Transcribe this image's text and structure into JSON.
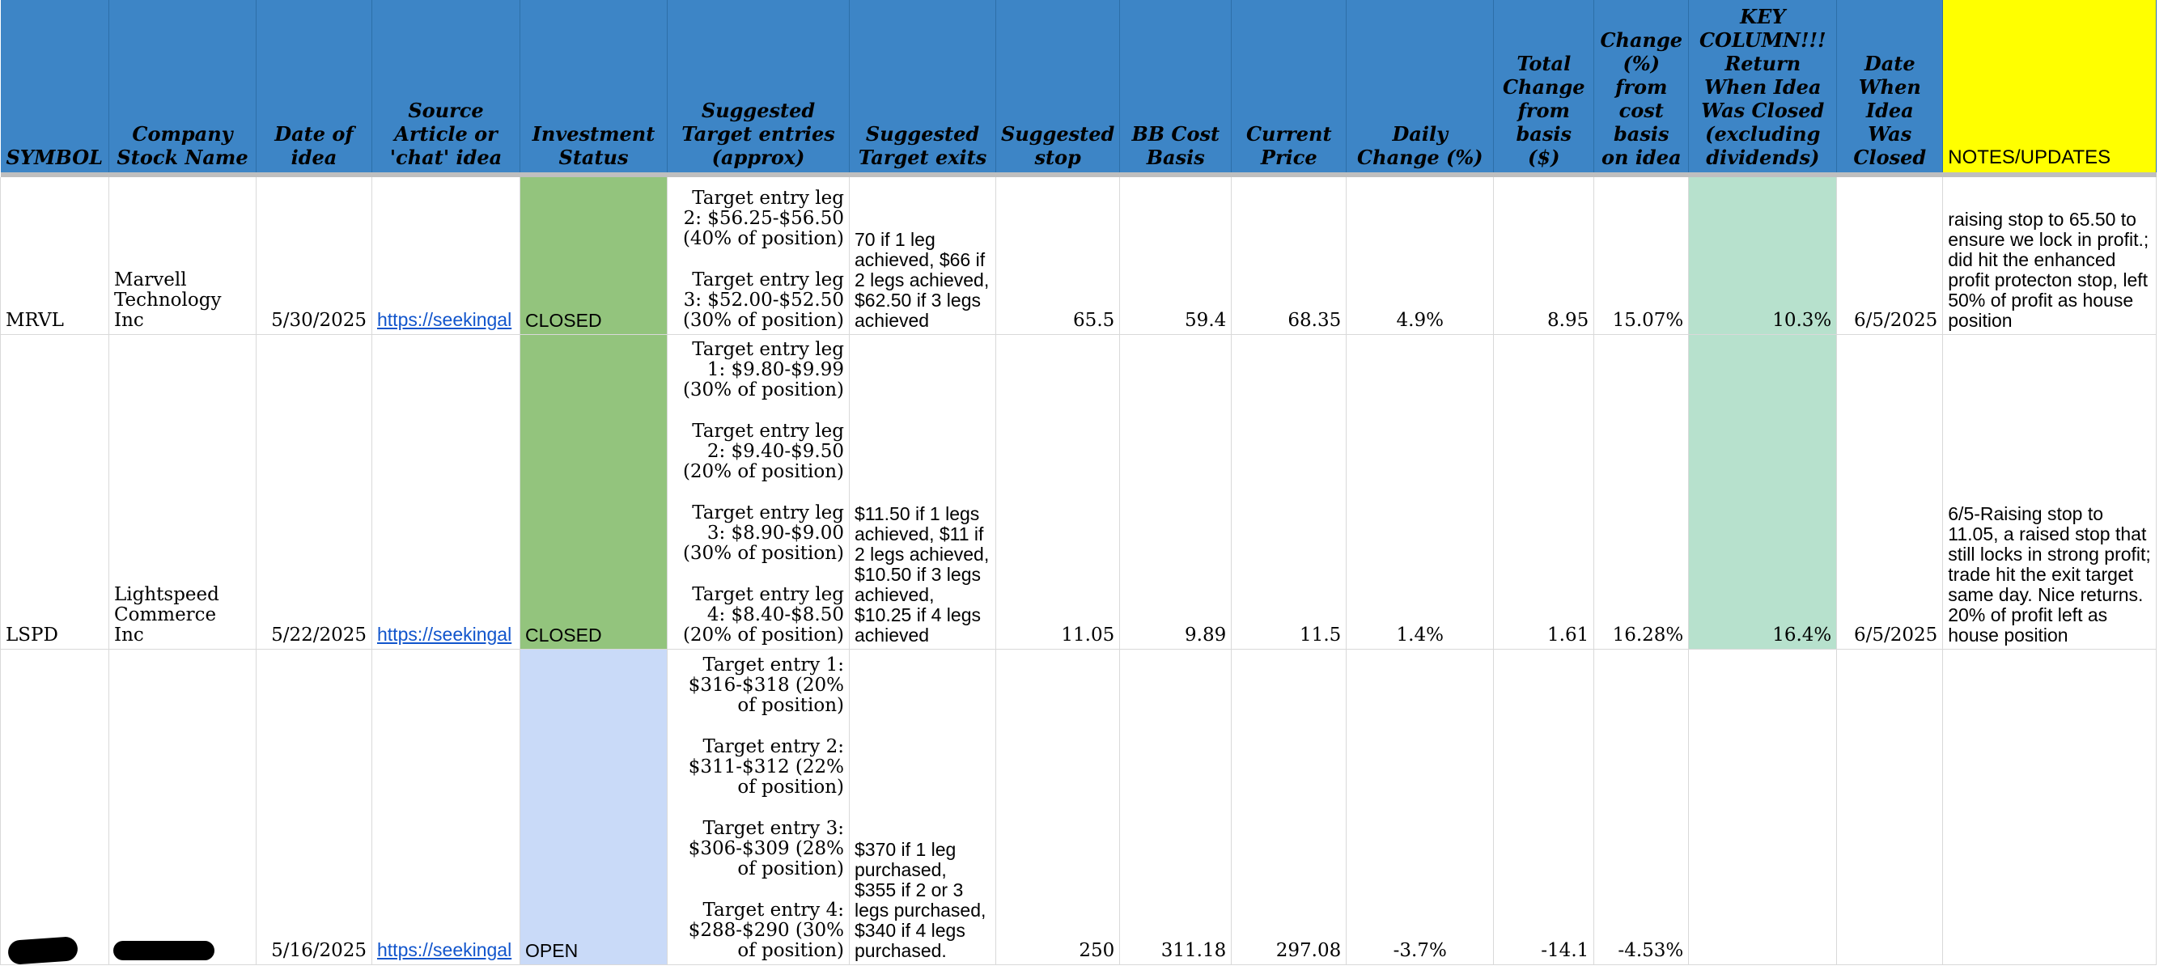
{
  "headers": {
    "symbol": "SYMBOL",
    "company": "Company Stock Name",
    "date_of_idea": "Date of idea",
    "source": "Source Article or 'chat' idea",
    "status": "Investment Status",
    "entries": "Suggested Target entries (approx)",
    "exits": "Suggested Target exits",
    "stop": "Suggested stop",
    "cost_basis": "BB Cost Basis",
    "current_price": "Current Price",
    "daily_change": "Daily Change (%)",
    "total_change": "Total Change from basis ($)",
    "change_pct": "Change (%) from cost basis on idea",
    "key_return": "KEY COLUMN!!! Return When Idea Was Closed (excluding dividends)",
    "date_closed": "Date When Idea Was Closed",
    "notes": "NOTES/UPDATES"
  },
  "rows": [
    {
      "symbol": "MRVL",
      "company": "Marvell Technology Inc",
      "date_of_idea": "5/30/2025",
      "source": "https://seekingalpha.com",
      "source_display": "https://seekingal",
      "status": "CLOSED",
      "entries": [
        "Target entry leg 2: $56.25-$56.50 (40% of position)",
        "Target entry leg 3: $52.00-$52.50 (30% of position)"
      ],
      "exits": "70 if 1 leg achieved, $66 if 2 legs achieved, $62.50 if 3 legs achieved",
      "stop": "65.5",
      "cost_basis": "59.4",
      "current_price": "68.35",
      "daily_change": "4.9%",
      "total_change": "8.95",
      "change_pct": "15.07%",
      "key_return": "10.3%",
      "date_closed": "6/5/2025",
      "notes": "raising stop to 65.50 to ensure we lock in profit.; did hit the enhanced profit protecton stop, left 50% of profit as house position"
    },
    {
      "symbol": "LSPD",
      "company": "Lightspeed Commerce Inc",
      "date_of_idea": "5/22/2025",
      "source": "https://seekingalpha.com",
      "source_display": "https://seekingal",
      "status": "CLOSED",
      "entries": [
        "Target entry leg 1: $9.80-$9.99 (30% of position)",
        "Target entry leg 2: $9.40-$9.50 (20% of position)",
        "Target entry leg 3: $8.90-$9.00 (30% of position)",
        "Target entry leg 4: $8.40-$8.50 (20% of position)"
      ],
      "exits": "$11.50 if 1 legs achieved, $11 if 2 legs achieved, $10.50 if 3 legs achieved, $10.25 if 4 legs achieved",
      "stop": "11.05",
      "cost_basis": "9.89",
      "current_price": "11.5",
      "daily_change": "1.4%",
      "total_change": "1.61",
      "change_pct": "16.28%",
      "key_return": "16.4%",
      "date_closed": "6/5/2025",
      "notes": "6/5-Raising stop to 11.05, a raised stop that still locks in strong profit; trade hit the exit target same day. Nice returns. 20% of profit left as house position"
    },
    {
      "symbol": "",
      "company": "",
      "date_of_idea": "5/16/2025",
      "source": "https://seekingalpha.com",
      "source_display": "https://seekingal",
      "status": "OPEN",
      "entries": [
        "Target entry 1: $316-$318 (20% of position)",
        "Target entry 2: $311-$312 (22% of position)",
        "Target entry 3: $306-$309 (28% of position)",
        "Target entry 4: $288-$290 (30% of position)"
      ],
      "exits": "$370 if 1 leg purchased, $355 if 2 or 3 legs purchased, $340 if 4 legs purchased.",
      "stop": "250",
      "cost_basis": "311.18",
      "current_price": "297.08",
      "daily_change": "-3.7%",
      "total_change": "-14.1",
      "change_pct": "-4.53%",
      "key_return": "",
      "date_closed": "",
      "notes": ""
    }
  ],
  "colors": {
    "header_blue": "#3d85c6",
    "notes_yellow": "#ffff00",
    "closed_green": "#93c47d",
    "open_blue": "#c9daf8",
    "return_green": "#b7e1cd",
    "link_blue": "#1155cc"
  }
}
